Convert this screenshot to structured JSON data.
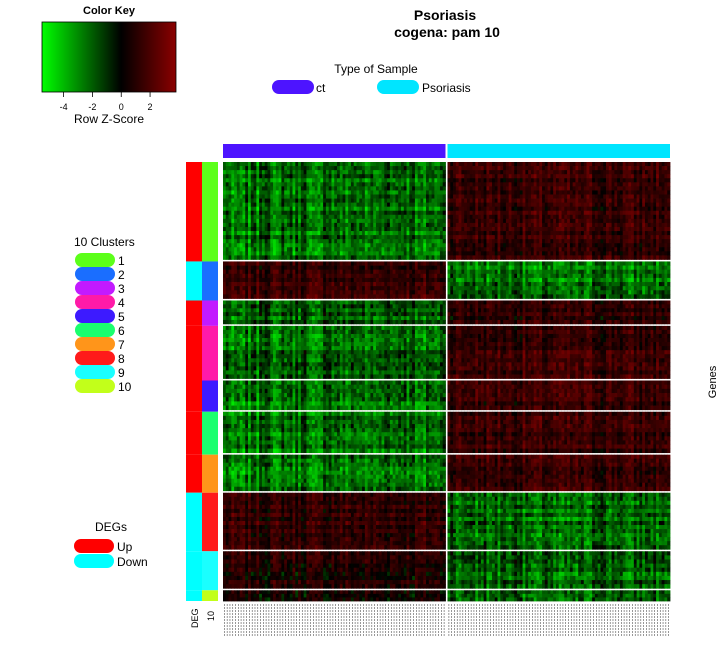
{
  "chart_data": {
    "type": "heatmap",
    "title": "Psoriasis",
    "subtitle": "cogena: pam 10",
    "color_key": {
      "title": "Color Key",
      "xlabel": "Row Z-Score",
      "ticks": [
        "-4",
        "-2",
        "0",
        "2"
      ],
      "range": [
        -5.5,
        3.8
      ],
      "colors": {
        "low": "#00ff00",
        "mid": "#000000",
        "high": "#8b0000"
      }
    },
    "sample_legend": {
      "title": "Type of Sample",
      "entries": [
        {
          "label": "ct",
          "color": "#4d14ff"
        },
        {
          "label": "Psoriasis",
          "color": "#00e5ff"
        }
      ]
    },
    "cluster_legend": {
      "title": "10 Clusters",
      "entries": [
        {
          "label": "1",
          "color": "#5cff1a"
        },
        {
          "label": "2",
          "color": "#1a6eff"
        },
        {
          "label": "3",
          "color": "#c21aff"
        },
        {
          "label": "4",
          "color": "#ff1aa8"
        },
        {
          "label": "5",
          "color": "#3d1aff"
        },
        {
          "label": "6",
          "color": "#1aff6e"
        },
        {
          "label": "7",
          "color": "#ff951a"
        },
        {
          "label": "8",
          "color": "#ff1a1a"
        },
        {
          "label": "9",
          "color": "#1affff"
        },
        {
          "label": "10",
          "color": "#c2ff1a"
        }
      ]
    },
    "deg_legend": {
      "title": "DEGs",
      "entries": [
        {
          "label": "Up",
          "color": "#ff0000"
        },
        {
          "label": "Down",
          "color": "#00ffff"
        }
      ]
    },
    "row_axis_label": "Genes",
    "side_bar_labels": [
      "DEG",
      "10"
    ],
    "sample_groups": [
      {
        "label": "ct",
        "count": 80
      },
      {
        "label": "Psoriasis",
        "count": 80
      }
    ],
    "row_blocks": [
      {
        "cluster": "1",
        "deg": "Up",
        "weight": 100,
        "ct_level": -0.55,
        "ps_level": 0.5
      },
      {
        "cluster": "2",
        "deg": "Down",
        "weight": 38,
        "ct_level": 0.5,
        "ps_level": -0.55
      },
      {
        "cluster": "3",
        "deg": "Up",
        "weight": 24,
        "ct_level": -0.45,
        "ps_level": 0.4
      },
      {
        "cluster": "4",
        "deg": "Up",
        "weight": 54,
        "ct_level": -0.5,
        "ps_level": 0.5
      },
      {
        "cluster": "5",
        "deg": "Up",
        "weight": 30,
        "ct_level": -0.55,
        "ps_level": 0.55
      },
      {
        "cluster": "6",
        "deg": "Up",
        "weight": 42,
        "ct_level": -0.55,
        "ps_level": 0.5
      },
      {
        "cluster": "7",
        "deg": "Up",
        "weight": 37,
        "ct_level": -0.6,
        "ps_level": 0.5
      },
      {
        "cluster": "8",
        "deg": "Down",
        "weight": 58,
        "ct_level": 0.45,
        "ps_level": -0.5
      },
      {
        "cluster": "9",
        "deg": "Down",
        "weight": 38,
        "ct_level": 0.3,
        "ps_level": -0.45
      },
      {
        "cluster": "10",
        "deg": "Down",
        "weight": 11,
        "ct_level": 0.25,
        "ps_level": -0.35
      }
    ]
  }
}
